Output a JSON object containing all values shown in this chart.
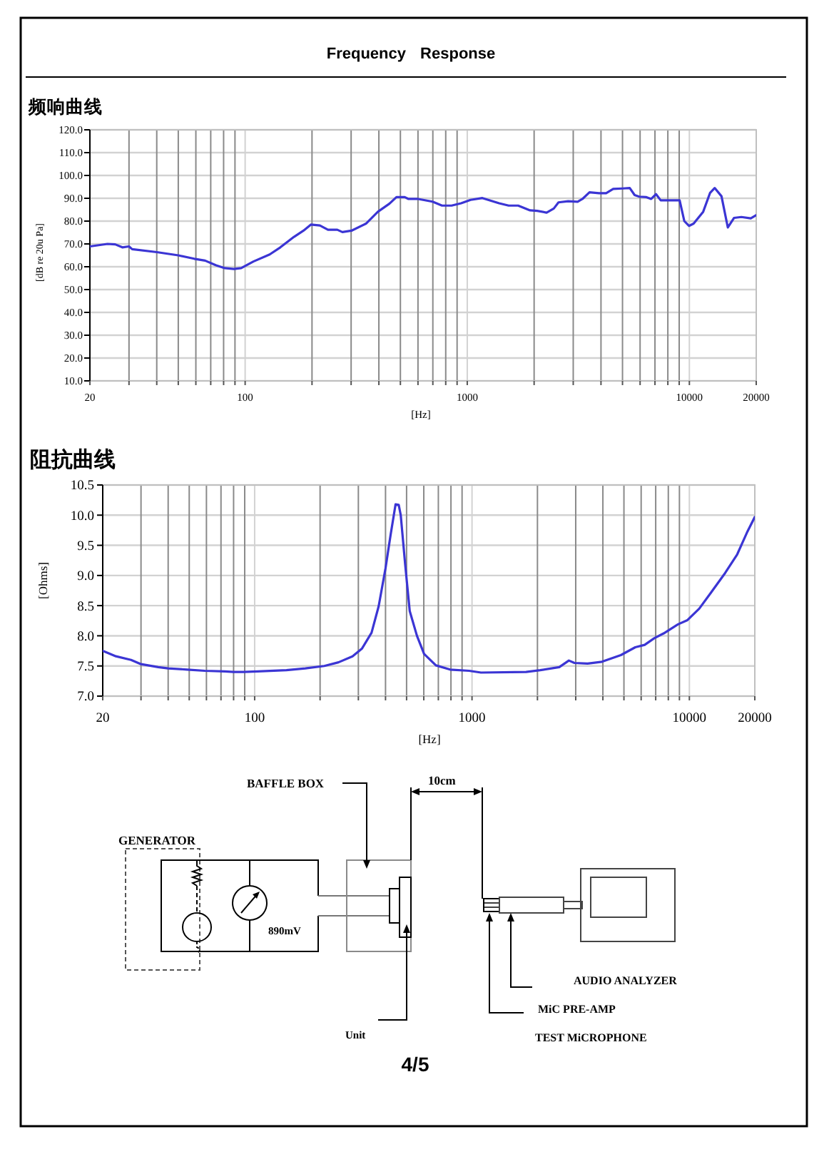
{
  "chart_data": [
    {
      "type": "line",
      "title": "Frequency Response",
      "subtitle": "频响曲线",
      "xlabel": "[Hz]",
      "ylabel": "[dB re 20u Pa]",
      "log": "x",
      "grid": true,
      "xlim": [
        20,
        20000
      ],
      "xticks": [
        20,
        {
          "value": 30,
          "label": null
        },
        {
          "value": 40,
          "label": null
        },
        {
          "value": 50,
          "label": null
        },
        {
          "value": 60,
          "label": null
        },
        {
          "value": 70,
          "label": null
        },
        {
          "value": 80,
          "label": null
        },
        {
          "value": 90,
          "label": null
        },
        100,
        {
          "value": 200,
          "label": null
        },
        {
          "value": 300,
          "label": null
        },
        {
          "value": 400,
          "label": null
        },
        {
          "value": 500,
          "label": null
        },
        {
          "value": 600,
          "label": null
        },
        {
          "value": 700,
          "label": null
        },
        {
          "value": 800,
          "label": null
        },
        {
          "value": 900,
          "label": null
        },
        1000,
        {
          "value": 2000,
          "label": null
        },
        {
          "value": 3000,
          "label": null
        },
        {
          "value": 4000,
          "label": null
        },
        {
          "value": 5000,
          "label": null
        },
        {
          "value": 6000,
          "label": null
        },
        {
          "value": 7000,
          "label": null
        },
        {
          "value": 8000,
          "label": null
        },
        {
          "value": 9000,
          "label": null
        },
        10000,
        20000
      ],
      "ylim": [
        10,
        120
      ],
      "yticks": [
        {
          "value": 10,
          "label": "10.0"
        },
        {
          "value": 20,
          "label": "20.0"
        },
        {
          "value": 30,
          "label": "30.0"
        },
        {
          "value": 40,
          "label": "40.0"
        },
        {
          "value": 50,
          "label": "50.0"
        },
        {
          "value": 60,
          "label": "60.0"
        },
        {
          "value": 70,
          "label": "70.0"
        },
        {
          "value": 80,
          "label": "80.0"
        },
        {
          "value": 90,
          "label": "90.0"
        },
        {
          "value": 100,
          "label": "100.0"
        },
        {
          "value": 110,
          "label": "110.0"
        },
        {
          "value": 120,
          "label": "120.0"
        }
      ],
      "series": [
        {
          "color": "#3b35d4",
          "x": [
            20,
            24,
            26,
            28,
            30,
            31,
            40,
            50,
            59,
            66,
            74,
            81,
            89,
            96,
            109,
            129,
            144,
            166,
            183,
            198,
            217,
            236,
            260,
            274,
            301,
            350,
            396,
            446,
            480,
            523,
            544,
            602,
            698,
            770,
            850,
            938,
            1035,
            1170,
            1392,
            1536,
            1695,
            1918,
            2065,
            2277,
            2452,
            2575,
            2845,
            3140,
            3300,
            3550,
            3920,
            4220,
            4540,
            5010,
            5390,
            5670,
            5950,
            6410,
            6730,
            7080,
            7430,
            8190,
            9040,
            9490,
            9960,
            10450,
            11540,
            12400,
            13000,
            13950,
            14900,
            15880,
            17140,
            18900,
            20000
          ],
          "values": [
            68.9,
            70.0,
            69.8,
            68.5,
            68.9,
            67.7,
            66.4,
            65.0,
            63.5,
            62.7,
            60.6,
            59.4,
            59.0,
            59.4,
            62.3,
            65.4,
            68.5,
            73.1,
            75.8,
            78.5,
            78.1,
            76.2,
            76.2,
            75.2,
            75.8,
            78.9,
            84.1,
            87.6,
            90.5,
            90.5,
            89.7,
            89.7,
            88.5,
            86.8,
            86.8,
            87.8,
            89.3,
            90.1,
            87.8,
            86.8,
            86.8,
            84.7,
            84.5,
            83.7,
            85.5,
            88.2,
            88.7,
            88.5,
            89.7,
            92.6,
            92.2,
            92.2,
            94.1,
            94.3,
            94.5,
            91.4,
            90.7,
            90.5,
            89.7,
            91.8,
            89.1,
            89.1,
            89.1,
            80.0,
            77.9,
            78.9,
            84.1,
            92.4,
            94.5,
            90.9,
            77.2,
            81.4,
            81.8,
            81.2,
            82.6
          ]
        }
      ]
    },
    {
      "type": "line",
      "title": "阻抗曲线",
      "xlabel": "[Hz]",
      "ylabel": "[Ohms]",
      "log": "x",
      "grid": true,
      "xlim": [
        20,
        20000
      ],
      "xticks": [
        20,
        {
          "value": 30,
          "label": null
        },
        {
          "value": 40,
          "label": null
        },
        {
          "value": 50,
          "label": null
        },
        {
          "value": 60,
          "label": null
        },
        {
          "value": 70,
          "label": null
        },
        {
          "value": 80,
          "label": null
        },
        {
          "value": 90,
          "label": null
        },
        100,
        {
          "value": 200,
          "label": null
        },
        {
          "value": 300,
          "label": null
        },
        {
          "value": 400,
          "label": null
        },
        {
          "value": 500,
          "label": null
        },
        {
          "value": 600,
          "label": null
        },
        {
          "value": 700,
          "label": null
        },
        {
          "value": 800,
          "label": null
        },
        {
          "value": 900,
          "label": null
        },
        1000,
        {
          "value": 2000,
          "label": null
        },
        {
          "value": 3000,
          "label": null
        },
        {
          "value": 4000,
          "label": null
        },
        {
          "value": 5000,
          "label": null
        },
        {
          "value": 6000,
          "label": null
        },
        {
          "value": 7000,
          "label": null
        },
        {
          "value": 8000,
          "label": null
        },
        {
          "value": 9000,
          "label": null
        },
        10000,
        20000
      ],
      "ylim": [
        7,
        10.5
      ],
      "yticks": [
        {
          "value": 7,
          "label": "7.0"
        },
        7.5,
        {
          "value": 8,
          "label": "8.0"
        },
        8.5,
        {
          "value": 9,
          "label": "9.0"
        },
        9.5,
        {
          "value": 10,
          "label": "10.0"
        },
        10.5
      ],
      "series": [
        {
          "color": "#3b35d4",
          "x": [
            20,
            23,
            27,
            30,
            36,
            40,
            49,
            59,
            73,
            80,
            89,
            103,
            140,
            171,
            209,
            243,
            282,
            312,
            345,
            372,
            400,
            422,
            445,
            460,
            470,
            492,
            517,
            558,
            602,
            682,
            793,
            970,
            1100,
            1773,
            2060,
            2520,
            2790,
            2960,
            3400,
            3960,
            4840,
            5640,
            6230,
            6890,
            7620,
            8860,
            9800,
            11100,
            12600,
            14600,
            16600,
            18400,
            20000
          ],
          "values": [
            7.75,
            7.66,
            7.6,
            7.53,
            7.48,
            7.46,
            7.44,
            7.42,
            7.41,
            7.4,
            7.4,
            7.41,
            7.43,
            7.46,
            7.5,
            7.56,
            7.66,
            7.79,
            8.05,
            8.49,
            9.12,
            9.67,
            10.18,
            10.17,
            10.0,
            9.2,
            8.41,
            8.0,
            7.7,
            7.51,
            7.44,
            7.42,
            7.39,
            7.4,
            7.43,
            7.48,
            7.59,
            7.55,
            7.54,
            7.57,
            7.68,
            7.81,
            7.85,
            7.96,
            8.04,
            8.19,
            8.26,
            8.45,
            8.72,
            9.04,
            9.35,
            9.71,
            9.97
          ]
        }
      ]
    },
    {
      "type": "other",
      "annotations": [
        "BAFFLE BOX",
        "10cm",
        "GENERATOR",
        "890mV",
        "Unit",
        "AUDIO ANALYZER",
        "MiC PRE-AMP",
        "TEST MiCROPHONE",
        "4/5"
      ]
    }
  ]
}
